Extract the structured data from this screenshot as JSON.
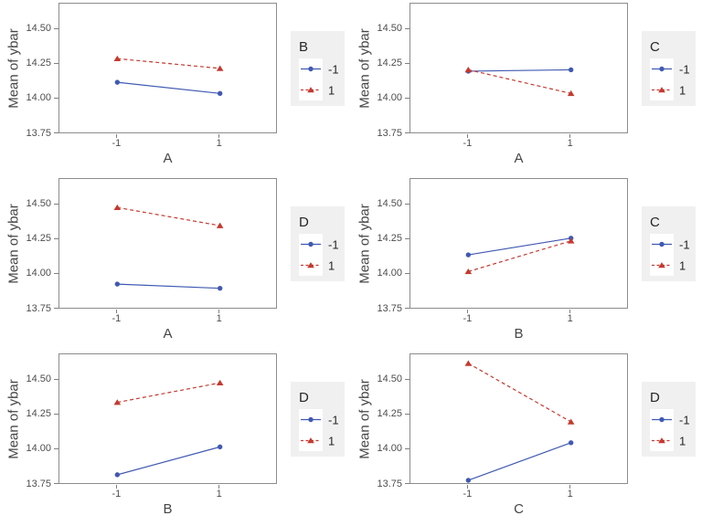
{
  "figure": {
    "background": "#FFFFFF",
    "colors": {
      "blue": "#4059B2",
      "red": "#C4392F",
      "panel_border": "#8C8C8C",
      "tick": "#7F7F7F",
      "tick_text": "#4D4D4D",
      "axis_title_text": "#454545",
      "legend_bg": "#F0F0F0",
      "legend_key_bg": "#FFFFFF",
      "legend_text": "#262626"
    }
  },
  "chart_data": [
    {
      "type": "line",
      "xlabel": "A",
      "ylabel": "Mean of ybar",
      "legend_title": "B",
      "x": [
        -1,
        1
      ],
      "x_tick_labels": [
        "-1",
        "1"
      ],
      "ylim": [
        13.747,
        14.685
      ],
      "yticks": [
        13.75,
        14.0,
        14.25,
        14.5
      ],
      "ytick_labels": [
        "13.75",
        "14.00",
        "14.25",
        "14.50"
      ],
      "grid": false,
      "legend_position": "right",
      "series": [
        {
          "name": "-1",
          "color": "blue",
          "line": "solid",
          "marker": "circle",
          "values": [
            14.12,
            14.04
          ]
        },
        {
          "name": "1",
          "color": "red",
          "line": "dashed",
          "marker": "triangle",
          "values": [
            14.29,
            14.22
          ]
        }
      ]
    },
    {
      "type": "line",
      "xlabel": "A",
      "ylabel": "Mean of ybar",
      "legend_title": "C",
      "x": [
        -1,
        1
      ],
      "x_tick_labels": [
        "-1",
        "1"
      ],
      "ylim": [
        13.747,
        14.685
      ],
      "yticks": [
        13.75,
        14.0,
        14.25,
        14.5
      ],
      "ytick_labels": [
        "13.75",
        "14.00",
        "14.25",
        "14.50"
      ],
      "grid": false,
      "legend_position": "right",
      "series": [
        {
          "name": "-1",
          "color": "blue",
          "line": "solid",
          "marker": "circle",
          "values": [
            14.2,
            14.21
          ]
        },
        {
          "name": "1",
          "color": "red",
          "line": "dashed",
          "marker": "triangle",
          "values": [
            14.21,
            14.04
          ]
        }
      ]
    },
    {
      "type": "line",
      "xlabel": "A",
      "ylabel": "Mean of ybar",
      "legend_title": "D",
      "x": [
        -1,
        1
      ],
      "x_tick_labels": [
        "-1",
        "1"
      ],
      "ylim": [
        13.747,
        14.685
      ],
      "yticks": [
        13.75,
        14.0,
        14.25,
        14.5
      ],
      "ytick_labels": [
        "13.75",
        "14.00",
        "14.25",
        "14.50"
      ],
      "grid": false,
      "legend_position": "right",
      "series": [
        {
          "name": "-1",
          "color": "blue",
          "line": "solid",
          "marker": "circle",
          "values": [
            13.93,
            13.9
          ]
        },
        {
          "name": "1",
          "color": "red",
          "line": "dashed",
          "marker": "triangle",
          "values": [
            14.48,
            14.35
          ]
        }
      ]
    },
    {
      "type": "line",
      "xlabel": "B",
      "ylabel": "Mean of ybar",
      "legend_title": "C",
      "x": [
        -1,
        1
      ],
      "x_tick_labels": [
        "-1",
        "1"
      ],
      "ylim": [
        13.747,
        14.685
      ],
      "yticks": [
        13.75,
        14.0,
        14.25,
        14.5
      ],
      "ytick_labels": [
        "13.75",
        "14.00",
        "14.25",
        "14.50"
      ],
      "grid": false,
      "legend_position": "right",
      "series": [
        {
          "name": "-1",
          "color": "blue",
          "line": "solid",
          "marker": "circle",
          "values": [
            14.14,
            14.26
          ]
        },
        {
          "name": "1",
          "color": "red",
          "line": "dashed",
          "marker": "triangle",
          "values": [
            14.02,
            14.24
          ]
        }
      ]
    },
    {
      "type": "line",
      "xlabel": "B",
      "ylabel": "Mean of ybar",
      "legend_title": "D",
      "x": [
        -1,
        1
      ],
      "x_tick_labels": [
        "-1",
        "1"
      ],
      "ylim": [
        13.747,
        14.685
      ],
      "yticks": [
        13.75,
        14.0,
        14.25,
        14.5
      ],
      "ytick_labels": [
        "13.75",
        "14.00",
        "14.25",
        "14.50"
      ],
      "grid": false,
      "legend_position": "right",
      "series": [
        {
          "name": "-1",
          "color": "blue",
          "line": "solid",
          "marker": "circle",
          "values": [
            13.82,
            14.02
          ]
        },
        {
          "name": "1",
          "color": "red",
          "line": "dashed",
          "marker": "triangle",
          "values": [
            14.34,
            14.48
          ]
        }
      ]
    },
    {
      "type": "line",
      "xlabel": "C",
      "ylabel": "Mean of ybar",
      "legend_title": "D",
      "x": [
        -1,
        1
      ],
      "x_tick_labels": [
        "-1",
        "1"
      ],
      "ylim": [
        13.747,
        14.685
      ],
      "yticks": [
        13.75,
        14.0,
        14.25,
        14.5
      ],
      "ytick_labels": [
        "13.75",
        "14.00",
        "14.25",
        "14.50"
      ],
      "grid": false,
      "legend_position": "right",
      "series": [
        {
          "name": "-1",
          "color": "blue",
          "line": "solid",
          "marker": "circle",
          "values": [
            13.78,
            14.05
          ]
        },
        {
          "name": "1",
          "color": "red",
          "line": "dashed",
          "marker": "triangle",
          "values": [
            14.62,
            14.2
          ]
        }
      ]
    }
  ]
}
